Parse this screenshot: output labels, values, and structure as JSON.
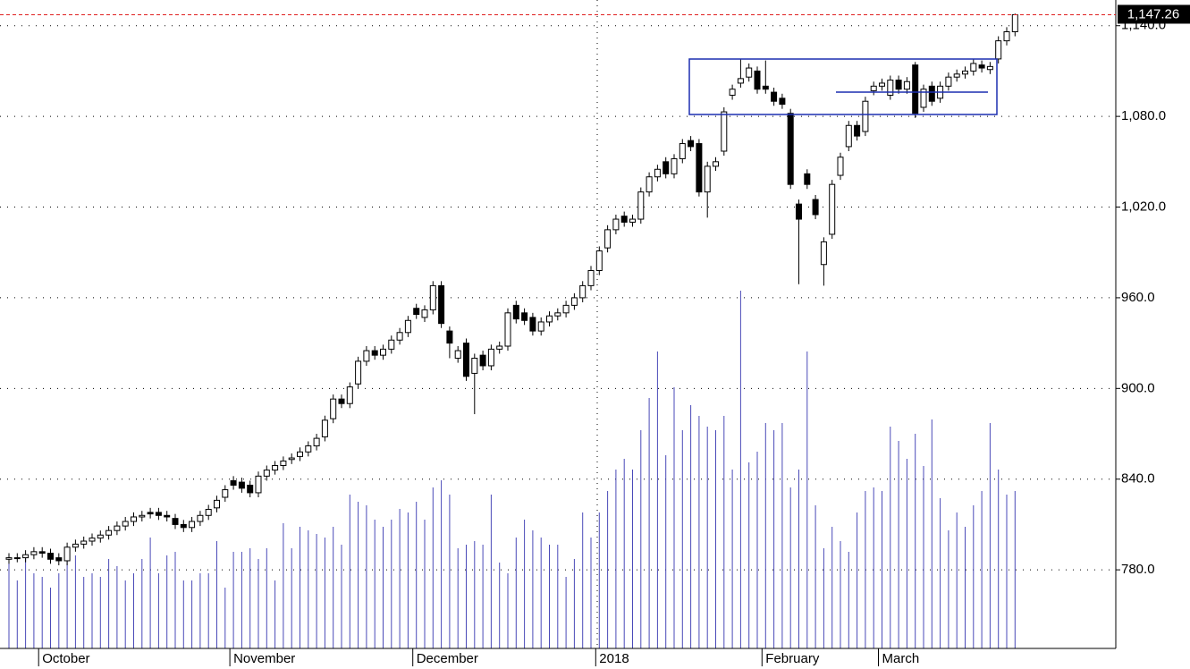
{
  "chart_data": {
    "type": "candlestick",
    "categories": [
      null,
      null,
      null,
      null,
      "October",
      null,
      null,
      null,
      null,
      null,
      null,
      null,
      null,
      null,
      null,
      null,
      null,
      null,
      null,
      null,
      null,
      null,
      null,
      null,
      null,
      null,
      null,
      "November",
      null,
      null,
      null,
      null,
      null,
      null,
      null,
      null,
      null,
      null,
      null,
      null,
      null,
      null,
      null,
      null,
      null,
      null,
      null,
      null,
      null,
      "December",
      null,
      null,
      null,
      null,
      null,
      null,
      null,
      null,
      null,
      null,
      null,
      null,
      null,
      null,
      null,
      null,
      null,
      null,
      null,
      null,
      null,
      "2018",
      null,
      null,
      null,
      null,
      null,
      null,
      null,
      null,
      null,
      null,
      null,
      null,
      null,
      null,
      null,
      null,
      null,
      null,
      null,
      "February",
      null,
      null,
      null,
      null,
      null,
      null,
      null,
      null,
      null,
      null,
      null,
      null,
      null,
      "March",
      null,
      null,
      null,
      null,
      null,
      null,
      null,
      null,
      null,
      null,
      null,
      null,
      null,
      null,
      null,
      null
    ],
    "open": [
      787,
      788,
      788,
      790,
      792,
      791,
      788,
      786,
      795,
      797,
      799,
      801,
      803,
      806,
      809,
      812,
      815,
      818,
      818,
      816,
      814,
      810,
      808,
      812,
      816,
      821,
      828,
      839,
      838,
      836,
      831,
      842,
      846,
      849,
      853,
      855,
      858,
      862,
      868,
      880,
      893,
      890,
      903,
      918,
      925,
      922,
      926,
      932,
      937,
      953,
      947,
      952,
      968,
      938,
      920,
      930,
      910,
      922,
      915,
      926,
      928,
      955,
      950,
      947,
      938,
      944,
      948,
      950,
      955,
      960,
      968,
      978,
      993,
      1005,
      1014,
      1010,
      1012,
      1030,
      1040,
      1050,
      1042,
      1052,
      1064,
      1062,
      1030,
      1047,
      1057,
      1094,
      1102,
      1106,
      1110,
      1100,
      1096,
      1092,
      1082,
      1022,
      1042,
      1025,
      982,
      1002,
      1041,
      1060,
      1074,
      1070,
      1097,
      1100,
      1094,
      1104,
      1098,
      1114,
      1086,
      1100,
      1092,
      1100,
      1106,
      1108,
      1110,
      1114,
      1111,
      1118,
      1130,
      1136
    ],
    "high": [
      791,
      791,
      793,
      795,
      795,
      794,
      791,
      798,
      800,
      802,
      804,
      806,
      809,
      812,
      815,
      818,
      819,
      821,
      821,
      819,
      817,
      813,
      815,
      819,
      823,
      829,
      836,
      842,
      841,
      839,
      845,
      849,
      852,
      855,
      857,
      861,
      865,
      870,
      882,
      896,
      896,
      904,
      921,
      928,
      928,
      929,
      935,
      940,
      948,
      956,
      955,
      971,
      971,
      941,
      928,
      933,
      923,
      925,
      929,
      931,
      953,
      958,
      953,
      950,
      947,
      951,
      953,
      958,
      963,
      971,
      981,
      994,
      1008,
      1015,
      1017,
      1015,
      1033,
      1043,
      1048,
      1053,
      1055,
      1065,
      1067,
      1065,
      1050,
      1053,
      1086,
      1101,
      1118,
      1115,
      1113,
      1117,
      1099,
      1095,
      1085,
      1025,
      1045,
      1028,
      1000,
      1038,
      1056,
      1077,
      1077,
      1093,
      1103,
      1105,
      1107,
      1107,
      1106,
      1116,
      1101,
      1103,
      1103,
      1109,
      1111,
      1113,
      1118,
      1117,
      1116,
      1133,
      1139,
      1148
    ],
    "low": [
      784,
      785,
      785,
      787,
      788,
      784,
      783,
      783,
      792,
      794,
      796,
      798,
      800,
      803,
      806,
      809,
      812,
      814,
      813,
      812,
      807,
      805,
      805,
      809,
      813,
      818,
      825,
      833,
      831,
      828,
      828,
      839,
      843,
      846,
      850,
      852,
      855,
      859,
      865,
      877,
      887,
      887,
      900,
      915,
      919,
      919,
      923,
      929,
      934,
      946,
      944,
      949,
      940,
      920,
      917,
      905,
      883,
      912,
      912,
      923,
      925,
      943,
      942,
      935,
      935,
      941,
      945,
      947,
      952,
      957,
      965,
      975,
      990,
      1002,
      1007,
      1007,
      1009,
      1027,
      1037,
      1039,
      1039,
      1049,
      1057,
      1027,
      1013,
      1044,
      1054,
      1091,
      1099,
      1103,
      1095,
      1095,
      1087,
      1085,
      1032,
      969,
      1032,
      1012,
      968,
      999,
      1038,
      1057,
      1064,
      1067,
      1094,
      1097,
      1091,
      1095,
      1095,
      1079,
      1083,
      1087,
      1089,
      1097,
      1103,
      1105,
      1107,
      1109,
      1108,
      1115,
      1127,
      1133
    ],
    "close": [
      788,
      788,
      790,
      792,
      791,
      787,
      786,
      795,
      797,
      799,
      801,
      803,
      806,
      809,
      812,
      815,
      816,
      817,
      816,
      815,
      810,
      808,
      812,
      816,
      820,
      826,
      833,
      836,
      834,
      831,
      842,
      846,
      849,
      852,
      854,
      858,
      862,
      867,
      879,
      893,
      890,
      901,
      918,
      925,
      922,
      926,
      932,
      937,
      945,
      949,
      952,
      968,
      943,
      930,
      925,
      908,
      920,
      915,
      926,
      928,
      950,
      946,
      945,
      938,
      944,
      948,
      950,
      955,
      960,
      968,
      978,
      991,
      1005,
      1012,
      1010,
      1012,
      1030,
      1040,
      1045,
      1042,
      1052,
      1062,
      1060,
      1030,
      1047,
      1050,
      1083,
      1098,
      1105,
      1112,
      1098,
      1098,
      1090,
      1088,
      1035,
      1012,
      1035,
      1015,
      997,
      1035,
      1053,
      1074,
      1067,
      1090,
      1100,
      1102,
      1104,
      1098,
      1103,
      1082,
      1098,
      1090,
      1100,
      1106,
      1108,
      1110,
      1115,
      1112,
      1113,
      1130,
      1136,
      1147.26
    ],
    "volume": [
      26,
      19,
      26,
      21,
      20,
      17,
      21,
      26,
      26,
      20,
      21,
      20,
      25,
      23,
      19,
      21,
      25,
      31,
      21,
      26,
      27,
      19,
      19,
      21,
      21,
      30,
      17,
      27,
      27,
      28,
      25,
      28,
      19,
      35,
      28,
      34,
      33,
      32,
      31,
      34,
      29,
      43,
      41,
      40,
      36,
      34,
      36,
      39,
      38,
      41,
      36,
      45,
      47,
      43,
      28,
      29,
      30,
      29,
      43,
      24,
      21,
      31,
      36,
      33,
      31,
      29,
      29,
      20,
      25,
      38,
      31,
      38,
      44,
      50,
      53,
      50,
      61,
      70,
      83,
      54,
      73,
      61,
      68,
      65,
      62,
      61,
      65,
      50,
      100,
      52,
      55,
      63,
      61,
      63,
      45,
      50,
      83,
      40,
      28,
      34,
      30,
      27,
      38,
      44,
      45,
      44,
      62,
      58,
      53,
      60,
      51,
      64,
      42,
      33,
      38,
      34,
      40,
      44,
      63,
      50,
      43,
      44
    ],
    "ylim": [
      728,
      1157
    ],
    "yticks": [
      {
        "value": 780,
        "label": "780.0"
      },
      {
        "value": 840,
        "label": "840.0"
      },
      {
        "value": 900,
        "label": "900.0"
      },
      {
        "value": 960,
        "label": "960.0"
      },
      {
        "value": 1020,
        "label": "1,020.0"
      },
      {
        "value": 1080,
        "label": "1,080.0"
      },
      {
        "value": 1140,
        "label": "1,140.0"
      }
    ],
    "y2lim": [
      0,
      100
    ],
    "grid": true,
    "up_color": "#ffffff",
    "down_color": "#000000",
    "volume_color": "#4a4ab8",
    "last_price": {
      "value": 1147.26,
      "label": "1,147.26",
      "color": "#e02020"
    }
  }
}
